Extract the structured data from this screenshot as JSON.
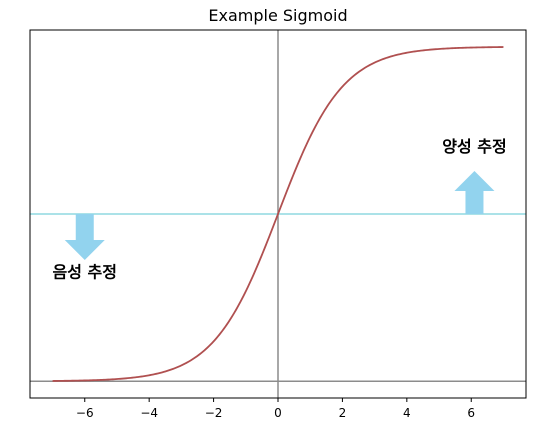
{
  "chart_data": {
    "type": "line",
    "title": "Example Sigmoid",
    "xlabel": "",
    "ylabel": "",
    "xlim": [
      -7.7,
      7.7
    ],
    "ylim": [
      -0.05,
      1.05
    ],
    "x_ticks": [
      -6,
      -4,
      -2,
      0,
      2,
      4,
      6
    ],
    "x_tick_labels": [
      "−6",
      "−4",
      "−2",
      "0",
      "2",
      "4",
      "6"
    ],
    "show_y_ticks": false,
    "grid": false,
    "series": [
      {
        "function": "sigmoid",
        "x_range": [
          -7,
          7
        ],
        "color": "#b05050"
      }
    ],
    "reference_lines": [
      {
        "orientation": "horizontal",
        "y": 0.5,
        "color": "#8fd8e0"
      },
      {
        "orientation": "horizontal",
        "y": 0.0,
        "color": "#8c8c8c"
      },
      {
        "orientation": "vertical",
        "x": 0,
        "color": "#8c8c8c"
      }
    ],
    "annotations": [
      {
        "text": "양성 추정",
        "x": 6.1,
        "y": 0.685,
        "arrow": "up"
      },
      {
        "text": "음성 추정",
        "x": -6.0,
        "y": 0.31,
        "arrow": "down"
      }
    ],
    "arrow_color": "#92d3ee"
  }
}
